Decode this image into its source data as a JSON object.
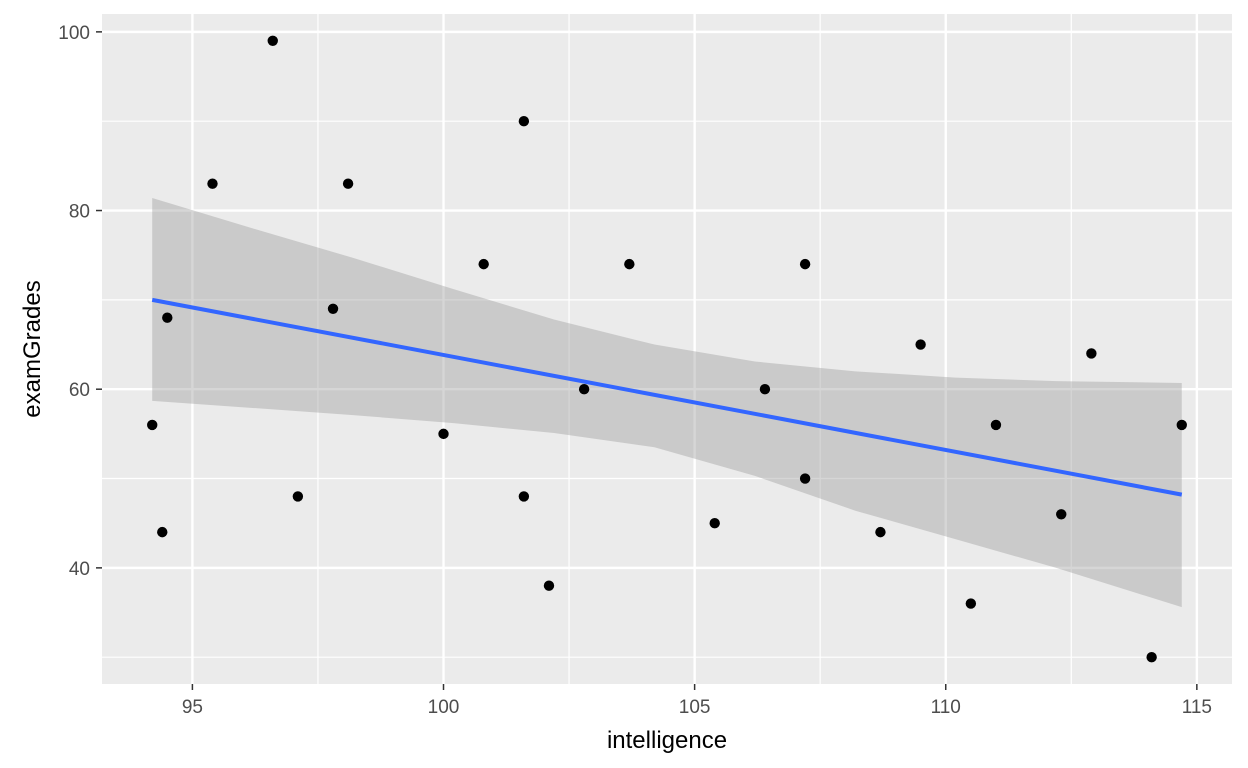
{
  "chart_data": {
    "type": "scatter",
    "xlabel": "intelligence",
    "ylabel": "examGrades",
    "xlim": [
      93.2,
      115.7
    ],
    "ylim": [
      27,
      102
    ],
    "x_ticks": [
      95,
      100,
      105,
      110,
      115
    ],
    "y_ticks": [
      40,
      60,
      80,
      100
    ],
    "x_minor": [
      97.5,
      102.5,
      107.5,
      112.5
    ],
    "y_minor": [
      30,
      50,
      70,
      90
    ],
    "grid": true,
    "panel_background": "#ebebeb",
    "grid_color": "#ffffff",
    "point_color": "#000000",
    "line_color": "#3366ff",
    "band_color": "#999999",
    "points": [
      {
        "x": 94.2,
        "y": 56
      },
      {
        "x": 94.4,
        "y": 44
      },
      {
        "x": 94.5,
        "y": 68
      },
      {
        "x": 95.4,
        "y": 83
      },
      {
        "x": 96.6,
        "y": 99
      },
      {
        "x": 97.1,
        "y": 48
      },
      {
        "x": 97.8,
        "y": 69
      },
      {
        "x": 98.1,
        "y": 83
      },
      {
        "x": 100.0,
        "y": 55
      },
      {
        "x": 100.8,
        "y": 74
      },
      {
        "x": 101.6,
        "y": 90
      },
      {
        "x": 101.6,
        "y": 48
      },
      {
        "x": 102.1,
        "y": 38
      },
      {
        "x": 102.8,
        "y": 60
      },
      {
        "x": 103.7,
        "y": 74
      },
      {
        "x": 105.4,
        "y": 45
      },
      {
        "x": 106.4,
        "y": 60
      },
      {
        "x": 107.2,
        "y": 74
      },
      {
        "x": 107.2,
        "y": 50
      },
      {
        "x": 108.7,
        "y": 44
      },
      {
        "x": 109.5,
        "y": 65
      },
      {
        "x": 110.5,
        "y": 36
      },
      {
        "x": 111.0,
        "y": 56
      },
      {
        "x": 112.3,
        "y": 46
      },
      {
        "x": 112.9,
        "y": 64
      },
      {
        "x": 114.1,
        "y": 30
      },
      {
        "x": 114.7,
        "y": 56
      }
    ],
    "trend_line": [
      {
        "x": 94.2,
        "y": 70.0
      },
      {
        "x": 114.7,
        "y": 48.2
      }
    ],
    "confidence_band": {
      "x": [
        94.2,
        96.2,
        98.2,
        100.2,
        102.2,
        104.2,
        106.2,
        108.2,
        110.2,
        112.2,
        114.7
      ],
      "upper": [
        81.4,
        78.0,
        74.7,
        71.2,
        67.8,
        65.0,
        63.1,
        62.0,
        61.3,
        60.9,
        60.7
      ],
      "lower": [
        58.7,
        57.9,
        57.1,
        56.2,
        55.1,
        53.5,
        50.3,
        46.4,
        43.2,
        40.0,
        35.6
      ]
    }
  }
}
